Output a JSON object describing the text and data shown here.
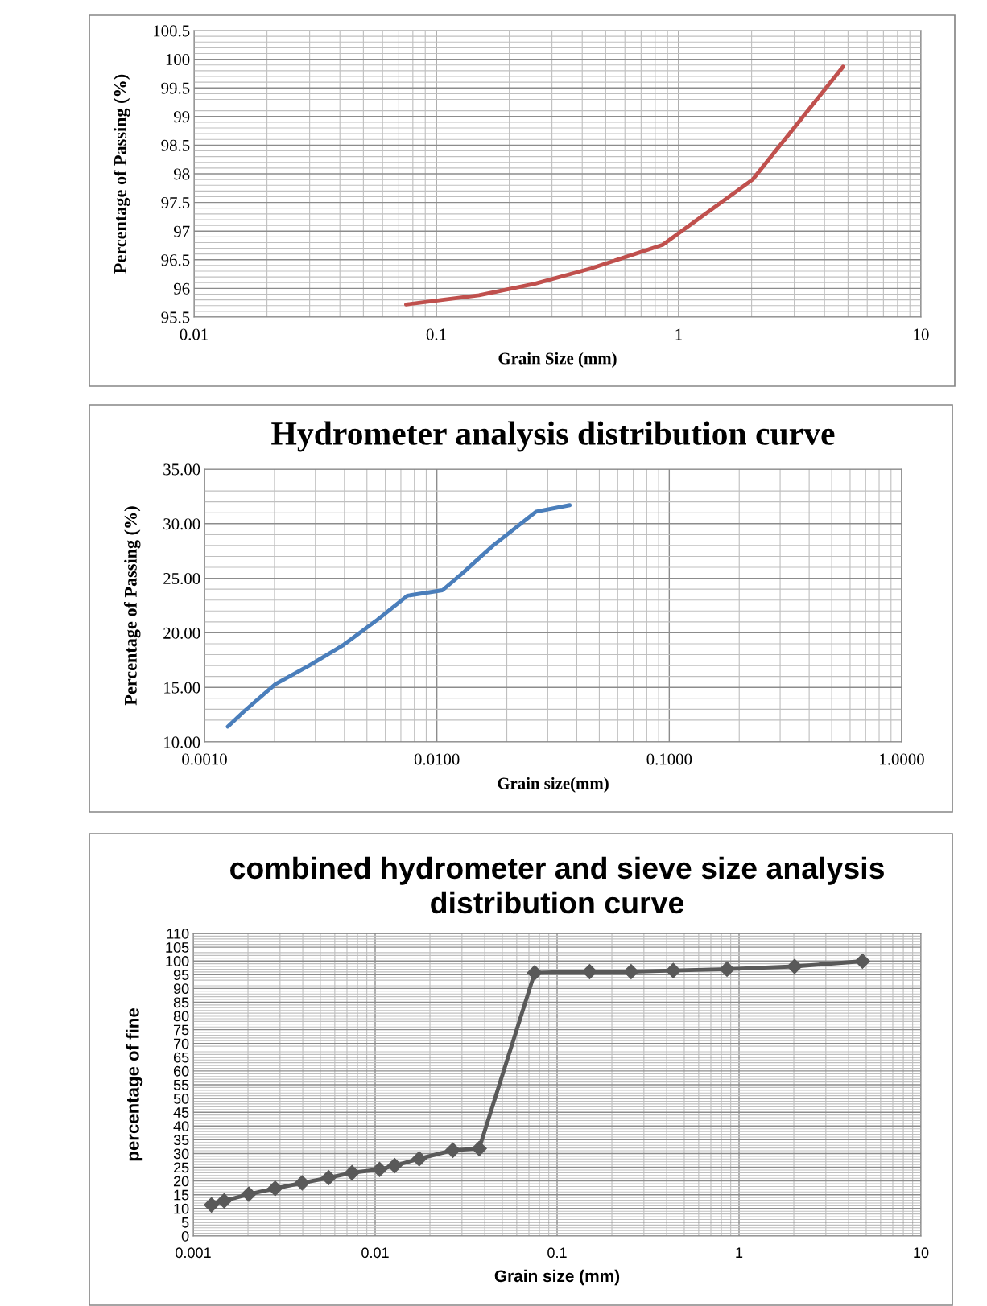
{
  "chart_data": [
    {
      "type": "line",
      "xlabel": "Grain Size (mm)",
      "ylabel": "Percentage of Passing (%)",
      "log": "x",
      "grid": true,
      "marker": "none",
      "line_style": "solid",
      "xlim": [
        0.01,
        10
      ],
      "xticks": [
        0.01,
        0.1,
        1,
        10
      ],
      "ylim": [
        95.5,
        100.5
      ],
      "yticks": [
        95.5,
        96,
        96.5,
        97,
        97.5,
        98,
        98.5,
        99,
        99.5,
        100,
        100.5
      ],
      "x": [
        0.075,
        0.15,
        0.255,
        0.435,
        0.859,
        2.02,
        4.77
      ],
      "series": [
        {
          "color": "#c0504d",
          "values": [
            95.72,
            95.88,
            96.08,
            96.35,
            96.76,
            97.9,
            99.87
          ]
        }
      ]
    },
    {
      "type": "line",
      "title": "Hydrometer analysis distribution curve",
      "xlabel": "Grain size(mm)",
      "ylabel": "Percentage of Passing (%)",
      "log": "x",
      "grid": true,
      "marker": "none",
      "line_style": "solid",
      "xlim": [
        0.001,
        1
      ],
      "xticks": [
        {
          "value": 0.001,
          "label": "0.0010"
        },
        {
          "value": 0.01,
          "label": "0.0100"
        },
        {
          "value": 0.1,
          "label": "0.1000"
        },
        {
          "value": 1,
          "label": "1.0000"
        }
      ],
      "ylim": [
        10,
        35
      ],
      "yticks": [
        {
          "value": 10,
          "label": "10.00"
        },
        {
          "value": 15,
          "label": "15.00"
        },
        {
          "value": 20,
          "label": "20.00"
        },
        {
          "value": 25,
          "label": "25.00"
        },
        {
          "value": 30,
          "label": "30.00"
        },
        {
          "value": 35,
          "label": "35.00"
        }
      ],
      "x": [
        0.00126,
        0.00148,
        0.00202,
        0.00282,
        0.00397,
        0.00555,
        0.00746,
        0.01057,
        0.0128,
        0.01746,
        0.02672,
        0.0373
      ],
      "series": [
        {
          "color": "#4a7ebb",
          "values": [
            11.4,
            12.8,
            15.3,
            17.0,
            18.9,
            21.2,
            23.4,
            23.9,
            25.4,
            28.0,
            31.1,
            31.7
          ]
        }
      ]
    },
    {
      "type": "line",
      "title": "combined hydrometer and sieve size analysis\ndistribution curve",
      "xlabel": "Grain size (mm)",
      "ylabel": "percentage of fine",
      "log": "x",
      "grid": true,
      "marker": "diamond",
      "line_style": "solid",
      "xlim": [
        0.001,
        10
      ],
      "xticks": [
        0.001,
        0.01,
        0.1,
        1,
        10
      ],
      "ylim": [
        0,
        110
      ],
      "yticks": [
        0,
        5,
        10,
        15,
        20,
        25,
        30,
        35,
        40,
        45,
        50,
        55,
        60,
        65,
        70,
        75,
        80,
        85,
        90,
        95,
        100,
        105,
        110
      ],
      "x": [
        0.00126,
        0.00148,
        0.00202,
        0.00282,
        0.00397,
        0.00555,
        0.00746,
        0.01057,
        0.0128,
        0.01746,
        0.02672,
        0.0373,
        0.0753,
        0.151,
        0.255,
        0.435,
        0.859,
        2.02,
        4.77
      ],
      "series": [
        {
          "color": "#595959",
          "values": [
            11.3,
            12.8,
            15.2,
            17.3,
            19.3,
            21.2,
            23.0,
            24.2,
            25.6,
            28.1,
            31.2,
            31.8,
            95.7,
            96.1,
            96.1,
            96.5,
            97.0,
            98.0,
            99.9
          ]
        }
      ]
    }
  ]
}
